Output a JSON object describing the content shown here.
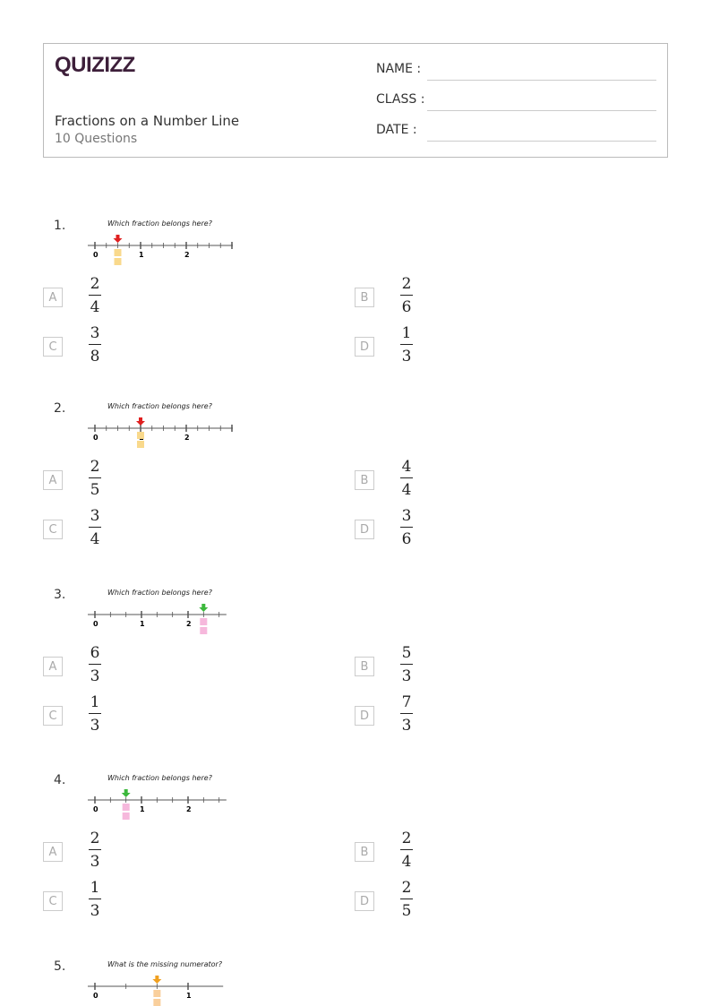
{
  "header": {
    "logo": "QUIZIZZ",
    "title": "Fractions on a Number Line",
    "subtitle": "10 Questions",
    "name_label": "NAME :",
    "class_label": "CLASS :",
    "date_label": "DATE  :"
  },
  "questions": [
    {
      "number": "1.",
      "prompt": "Which fraction belongs here?",
      "line": {
        "labels": [
          "0",
          "1",
          "2"
        ],
        "max": 3,
        "subdiv": 4,
        "marker": 0.5,
        "arrow_color": "#e02020",
        "box_color": "#f9d98c"
      },
      "options": [
        {
          "letter": "A",
          "num": "2",
          "den": "4"
        },
        {
          "letter": "B",
          "num": "2",
          "den": "6"
        },
        {
          "letter": "C",
          "num": "3",
          "den": "8"
        },
        {
          "letter": "D",
          "num": "1",
          "den": "3"
        }
      ]
    },
    {
      "number": "2.",
      "prompt": "Which fraction belongs here?",
      "line": {
        "labels": [
          "0",
          "1",
          "2"
        ],
        "max": 3,
        "subdiv": 4,
        "marker": 1,
        "arrow_color": "#e02020",
        "box_color": "#f9d98c"
      },
      "options": [
        {
          "letter": "A",
          "num": "2",
          "den": "5"
        },
        {
          "letter": "B",
          "num": "4",
          "den": "4"
        },
        {
          "letter": "C",
          "num": "3",
          "den": "4"
        },
        {
          "letter": "D",
          "num": "3",
          "den": "6"
        }
      ]
    },
    {
      "number": "3.",
      "prompt": "Which fraction belongs here?",
      "line": {
        "labels": [
          "0",
          "1",
          "2"
        ],
        "max": 2.67,
        "subdiv": 3,
        "marker": 2.333,
        "arrow_color": "#3cb83c",
        "box_color": "#f6b8dc"
      },
      "options": [
        {
          "letter": "A",
          "num": "6",
          "den": "3"
        },
        {
          "letter": "B",
          "num": "5",
          "den": "3"
        },
        {
          "letter": "C",
          "num": "1",
          "den": "3"
        },
        {
          "letter": "D",
          "num": "7",
          "den": "3"
        }
      ]
    },
    {
      "number": "4.",
      "prompt": "Which fraction belongs here?",
      "line": {
        "labels": [
          "0",
          "1",
          "2"
        ],
        "max": 2.67,
        "subdiv": 3,
        "marker": 0.667,
        "arrow_color": "#3cb83c",
        "box_color": "#f6b8dc"
      },
      "options": [
        {
          "letter": "A",
          "num": "2",
          "den": "3"
        },
        {
          "letter": "B",
          "num": "2",
          "den": "4"
        },
        {
          "letter": "C",
          "num": "1",
          "den": "3"
        },
        {
          "letter": "D",
          "num": "2",
          "den": "5"
        }
      ]
    },
    {
      "number": "5.",
      "prompt": "What is the missing numerator?",
      "line": {
        "labels": [
          "0",
          "1"
        ],
        "max": 1.3,
        "subdiv": 3,
        "marker": 0.667,
        "arrow_color": "#f0a020",
        "box_color": "#f9cf9c"
      },
      "options": []
    }
  ]
}
